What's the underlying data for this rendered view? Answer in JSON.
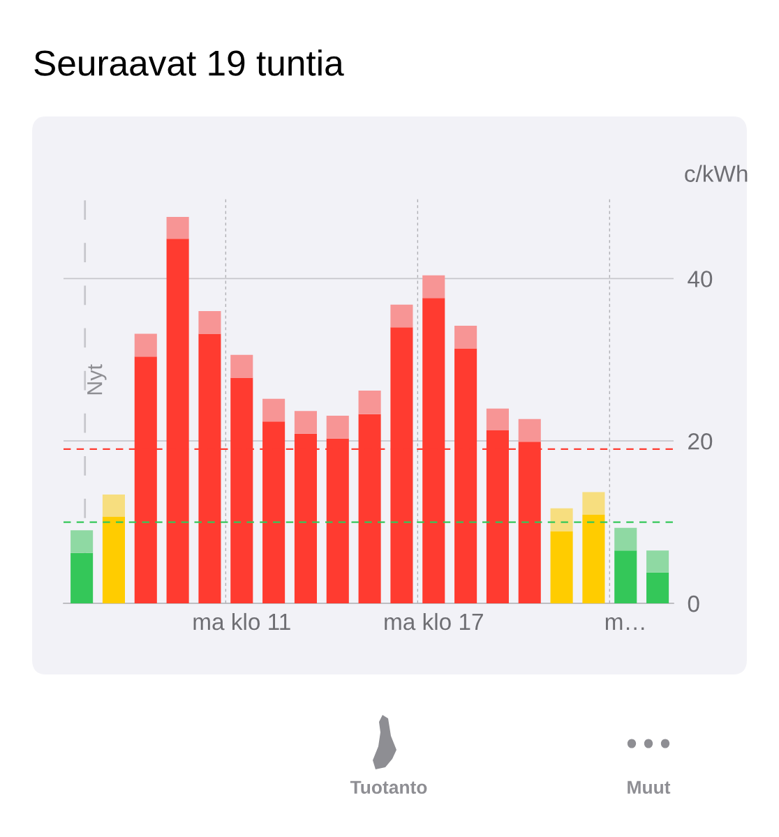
{
  "chart_data": {
    "type": "bar",
    "title": "Seuraavat 19 tuntia",
    "ylabel": "c/kWh",
    "categories": [
      null,
      null,
      null,
      null,
      null,
      "ma klo 11",
      null,
      null,
      null,
      null,
      null,
      "ma klo 17",
      null,
      null,
      null,
      null,
      null,
      "m…",
      null
    ],
    "stacked": true,
    "series": [
      {
        "values": [
          6.2,
          10.7,
          30.4,
          44.9,
          33.2,
          27.8,
          22.4,
          20.9,
          20.3,
          23.3,
          34.0,
          37.6,
          31.4,
          21.3,
          19.9,
          8.9,
          10.9,
          6.5,
          3.8
        ],
        "colors": [
          "#34c759",
          "#ffcc00",
          "#ff3b30",
          "#ff3b30",
          "#ff3b30",
          "#ff3b30",
          "#ff3b30",
          "#ff3b30",
          "#ff3b30",
          "#ff3b30",
          "#ff3b30",
          "#ff3b30",
          "#ff3b30",
          "#ff3b30",
          "#ff3b30",
          "#ffcc00",
          "#ffcc00",
          "#34c759",
          "#34c759"
        ]
      },
      {
        "values": [
          2.8,
          2.7,
          2.8,
          2.7,
          2.8,
          2.8,
          2.8,
          2.8,
          2.8,
          2.9,
          2.8,
          2.8,
          2.8,
          2.7,
          2.8,
          2.8,
          2.8,
          2.8,
          2.7
        ],
        "colors": [
          "#8fd9a3",
          "#f7de7f",
          "#f79595",
          "#f79595",
          "#f79595",
          "#f79595",
          "#f79595",
          "#f79595",
          "#f79595",
          "#f79595",
          "#f79595",
          "#f79595",
          "#f79595",
          "#f79595",
          "#f79595",
          "#f7de7f",
          "#f7de7f",
          "#8fd9a3",
          "#8fd9a3"
        ]
      }
    ],
    "ylim": [
      0,
      50
    ],
    "yticks": [
      0,
      20,
      40
    ],
    "grid": true,
    "ref_lines": [
      {
        "axis": "y",
        "value": 19,
        "color": "#ff3b30",
        "line_style": "dashed"
      },
      {
        "axis": "y",
        "value": 10,
        "color": "#34c759",
        "line_style": "dashed"
      }
    ],
    "annotations": [
      "Nyt",
      "Tuotanto",
      "Muut"
    ]
  }
}
